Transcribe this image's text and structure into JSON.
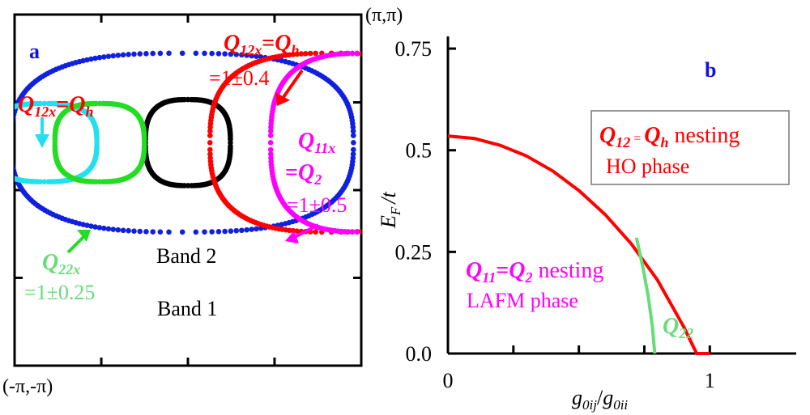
{
  "colors": {
    "black": "#000000",
    "red": "#ff0000",
    "blue": "#1020e0",
    "magenta": "#ff00ff",
    "cyan": "#22e0f0",
    "green": "#22dd22",
    "lightgreen": "#66dd77",
    "panel_label_blue": "#1010e0"
  },
  "chart_data": [
    {
      "type": "scatter",
      "panel_label": "a",
      "corner_labels": {
        "top_right": "(π,π)",
        "bottom_left": "(-π,-π)"
      },
      "xlim": [
        -3.1416,
        3.1416
      ],
      "ylim": [
        -3.1416,
        3.1416
      ],
      "curves": [
        {
          "id": "band1",
          "color": "blue",
          "center": [
            -0.1,
            0.85
          ],
          "semi_axes": [
            3.1,
            1.6
          ]
        },
        {
          "id": "band2",
          "color": "black",
          "center": [
            0.0,
            0.85
          ],
          "semi_axes": [
            0.77,
            0.77
          ]
        },
        {
          "id": "cyan",
          "color": "cyan",
          "center": [
            -2.6,
            0.85
          ],
          "semi_axes": [
            0.95,
            0.7
          ]
        },
        {
          "id": "green",
          "color": "green",
          "center": [
            -1.6,
            0.85
          ],
          "semi_axes": [
            0.81,
            0.7
          ]
        },
        {
          "id": "red",
          "color": "red",
          "center": [
            2.6,
            0.85
          ],
          "semi_axes": [
            2.2,
            1.6
          ]
        },
        {
          "id": "magenta",
          "color": "magenta",
          "center": [
            3.2,
            0.85
          ],
          "semi_axes": [
            1.7,
            1.6
          ]
        }
      ],
      "labels": {
        "band1": "Band 1",
        "band2": "Band 2",
        "q12x_h": {
          "q": "Q",
          "sub": "12x",
          "eq": "=",
          "q2": "Q",
          "sub2": "h"
        },
        "q12x_h_right": {
          "q": "Q",
          "sub": "12x",
          "eq": "=",
          "q2": "Q",
          "sub2": "h",
          "value": "=1±0.4"
        },
        "q11x_2": {
          "q": "Q",
          "sub": "11x",
          "line2_prefix": "=",
          "q2": "Q",
          "sub2": "2",
          "value": "=1±0.5"
        },
        "q22x": {
          "q": "Q",
          "sub": "22x",
          "value": "=1±0.25"
        }
      }
    },
    {
      "type": "line",
      "panel_label": "b",
      "xlabel": {
        "g1": "g",
        "s1": "0ij",
        "slash": "/",
        "g2": "g",
        "s2": "0ii"
      },
      "ylabel": {
        "e": "E",
        "s": "F",
        "rest": "/t"
      },
      "xlim": [
        0,
        1.33
      ],
      "ylim": [
        0,
        0.78
      ],
      "xtick_labels": [
        {
          "x": 0,
          "label": "0"
        },
        {
          "x": 1,
          "label": "1"
        }
      ],
      "xtick_minor": [
        0.25,
        0.5,
        0.75
      ],
      "ytick_labels": [
        {
          "y": 0.0,
          "label": "0.0"
        },
        {
          "y": 0.25,
          "label": "0.25"
        },
        {
          "y": 0.5,
          "label": "0.5"
        },
        {
          "y": 0.75,
          "label": "0.75"
        }
      ],
      "series": [
        {
          "id": "ho_boundary",
          "color": "red",
          "x": [
            0,
            0.1,
            0.2,
            0.3,
            0.4,
            0.5,
            0.6,
            0.7,
            0.8,
            0.9,
            0.95,
            0.98,
            1.0
          ],
          "y": [
            0.535,
            0.529,
            0.512,
            0.486,
            0.449,
            0.401,
            0.342,
            0.27,
            0.181,
            0.066,
            0.0,
            0.0,
            0.0
          ]
        },
        {
          "id": "q22",
          "color": "lightgreen",
          "x": [
            0.72,
            0.745,
            0.765,
            0.78,
            0.79
          ],
          "y": [
            0.285,
            0.21,
            0.14,
            0.07,
            0.0
          ]
        }
      ],
      "annotations": {
        "box": {
          "q": "Q",
          "sub": "12",
          "eq": "=",
          "q2": "Q",
          "sub2": "h",
          "text": " nesting",
          "line2": "HO phase"
        },
        "lafm": {
          "q": "Q",
          "sub": "11",
          "eq": "=",
          "q2": "Q",
          "sub2": "2",
          "text": " nesting",
          "line2": "LAFM phase"
        },
        "q22": {
          "q": "Q",
          "sub": "22"
        }
      }
    }
  ]
}
